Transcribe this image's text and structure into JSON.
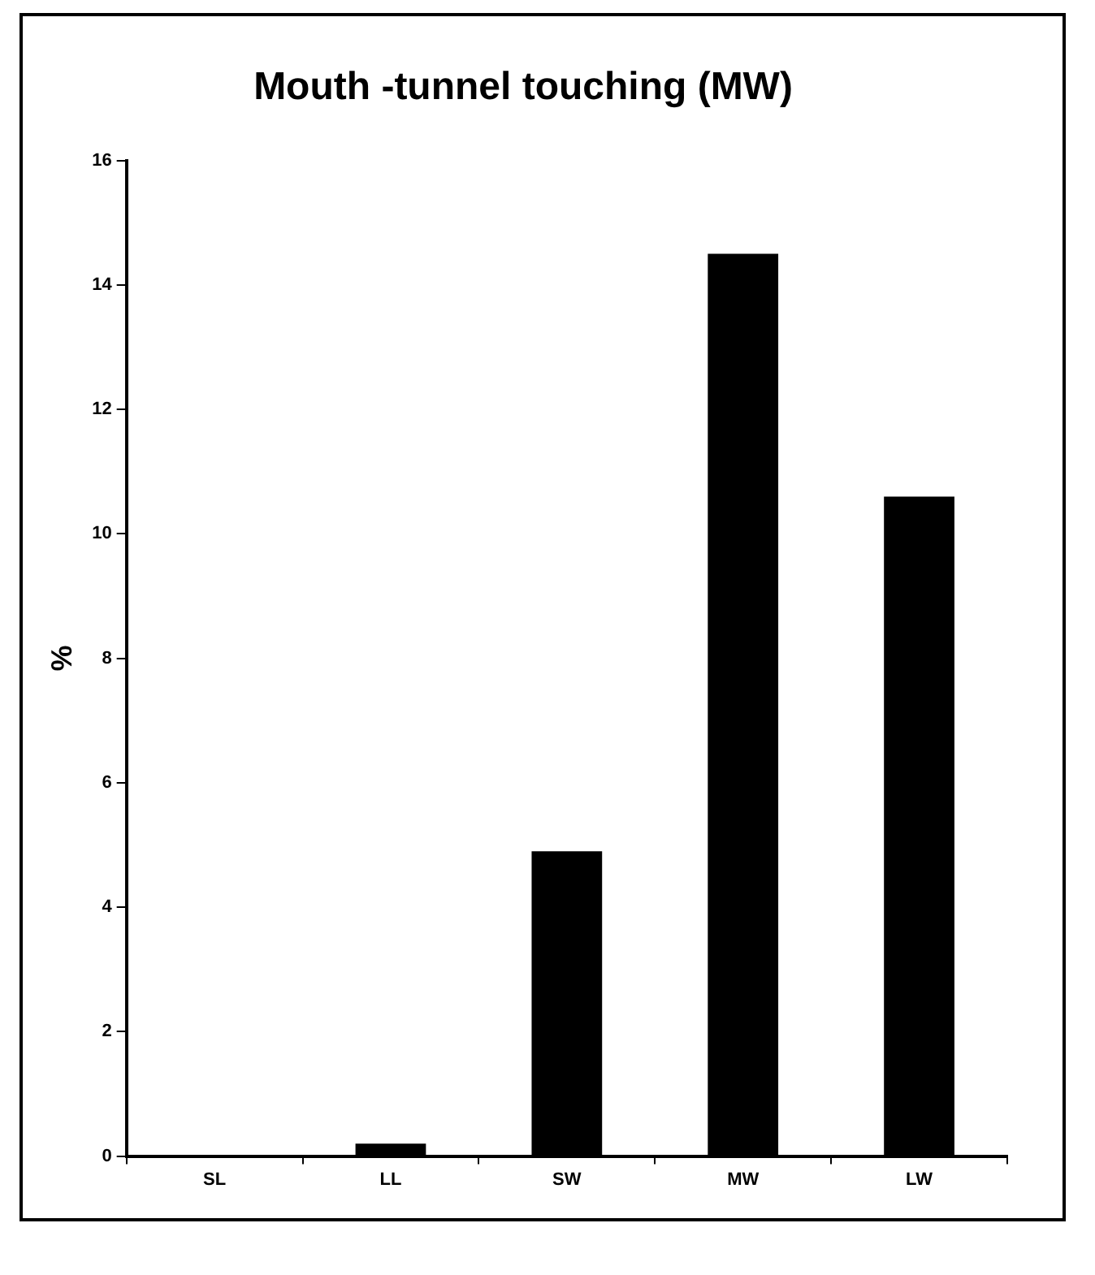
{
  "chart_data": {
    "type": "bar",
    "title": "Mouth -tunnel touching (MW)",
    "ylabel": "%",
    "categories": [
      "SL",
      "LL",
      "SW",
      "MW",
      "LW"
    ],
    "values": [
      0,
      0.2,
      4.9,
      14.5,
      10.6
    ],
    "color": "#000000",
    "ylim": [
      0,
      16
    ],
    "yticks": [
      0,
      2,
      4,
      6,
      8,
      10,
      12,
      14,
      16
    ],
    "grid": false,
    "legend": false
  }
}
